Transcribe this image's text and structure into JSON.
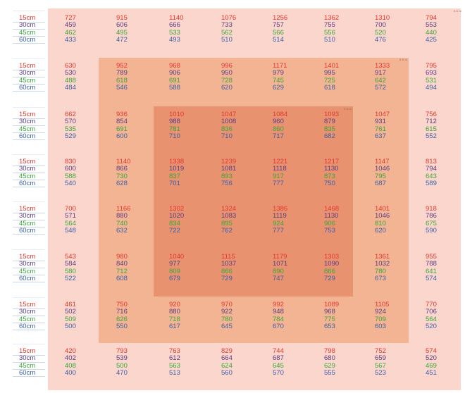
{
  "corner_tag": "0.6 m",
  "depth_labels": [
    "15cm",
    "30cm",
    "45cm",
    "60cm"
  ],
  "colors": {
    "d15": "#e2372e",
    "d30": "#5a3a82",
    "d45": "#3aa63a",
    "d60": "#3a5fa6",
    "zone_outer": "#fbd6cc",
    "zone_mid": "#f3b493",
    "zone_inner": "#e89270"
  },
  "rows": [
    [
      [
        727,
        459,
        462,
        433
      ],
      [
        915,
        606,
        495,
        472
      ],
      [
        1140,
        666,
        533,
        493
      ],
      [
        1076,
        733,
        562,
        510
      ],
      [
        1256,
        757,
        566,
        514
      ],
      [
        1362,
        755,
        556,
        510
      ],
      [
        1310,
        700,
        520,
        476
      ],
      [
        794,
        553,
        440,
        425
      ]
    ],
    [
      [
        630,
        530,
        488,
        484
      ],
      [
        952,
        789,
        618,
        546
      ],
      [
        968,
        906,
        691,
        588
      ],
      [
        996,
        950,
        728,
        620
      ],
      [
        1171,
        979,
        745,
        629
      ],
      [
        1401,
        995,
        725,
        618
      ],
      [
        1333,
        917,
        642,
        572
      ],
      [
        795,
        693,
        531,
        494
      ]
    ],
    [
      [
        662,
        570,
        535,
        529
      ],
      [
        936,
        854,
        691,
        600
      ],
      [
        1010,
        988,
        781,
        710
      ],
      [
        1047,
        1008,
        836,
        710
      ],
      [
        1084,
        960,
        860,
        717
      ],
      [
        1093,
        879,
        835,
        682
      ],
      [
        1047,
        931,
        761,
        637
      ],
      [
        756,
        712,
        615,
        552
      ]
    ],
    [
      [
        830,
        600,
        588,
        540
      ],
      [
        1140,
        866,
        730,
        628
      ],
      [
        1338,
        1019,
        837,
        701
      ],
      [
        1239,
        1081,
        893,
        756
      ],
      [
        1221,
        1118,
        917,
        777
      ],
      [
        1217,
        1130,
        873,
        750
      ],
      [
        1147,
        1046,
        795,
        687
      ],
      [
        813,
        794,
        643,
        589
      ]
    ],
    [
      [
        700,
        571,
        564,
        548
      ],
      [
        1166,
        880,
        740,
        632
      ],
      [
        1302,
        1020,
        834,
        722
      ],
      [
        1324,
        1083,
        895,
        762
      ],
      [
        1386,
        1119,
        924,
        777
      ],
      [
        1468,
        1130,
        906,
        753
      ],
      [
        1401,
        1046,
        810,
        620
      ],
      [
        918,
        786,
        675,
        590
      ]
    ],
    [
      [
        543,
        584,
        580,
        522
      ],
      [
        980,
        840,
        712,
        608
      ],
      [
        1040,
        977,
        809,
        679
      ],
      [
        1115,
        1037,
        866,
        729
      ],
      [
        1179,
        1071,
        890,
        747
      ],
      [
        1303,
        1090,
        866,
        729
      ],
      [
        1361,
        1032,
        780,
        673
      ],
      [
        955,
        788,
        641,
        574
      ]
    ],
    [
      [
        461,
        502,
        509,
        500
      ],
      [
        750,
        716,
        626,
        550
      ],
      [
        920,
        880,
        718,
        617
      ],
      [
        970,
        922,
        780,
        645
      ],
      [
        992,
        948,
        784,
        670
      ],
      [
        1089,
        968,
        775,
        653
      ],
      [
        1105,
        924,
        709,
        603
      ],
      [
        770,
        706,
        564,
        520
      ]
    ],
    [
      [
        420,
        402,
        408,
        400
      ],
      [
        793,
        539,
        500,
        470
      ],
      [
        763,
        612,
        563,
        513
      ],
      [
        829,
        664,
        624,
        560
      ],
      [
        744,
        687,
        645,
        570
      ],
      [
        798,
        680,
        629,
        555
      ],
      [
        752,
        659,
        567,
        523
      ],
      [
        574,
        520,
        469,
        451
      ]
    ]
  ]
}
